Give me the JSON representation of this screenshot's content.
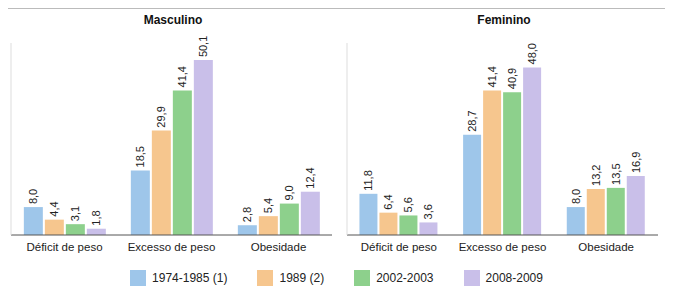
{
  "chart_data": [
    {
      "type": "bar",
      "title": "Masculino",
      "categories": [
        "Déficit de peso",
        "Excesso de peso",
        "Obesidade"
      ],
      "series": [
        {
          "name": "1974-1985 (1)",
          "color": "#9ec6ea",
          "values": [
            8.0,
            18.5,
            2.8
          ],
          "value_labels": [
            "8,0",
            "18,5",
            "2,8"
          ]
        },
        {
          "name": "1989 (2)",
          "color": "#f6c68e",
          "values": [
            4.4,
            29.9,
            5.4
          ],
          "value_labels": [
            "4,4",
            "29,9",
            "5,4"
          ]
        },
        {
          "name": "2002-2003",
          "color": "#8dd08c",
          "values": [
            3.1,
            41.4,
            9.0
          ],
          "value_labels": [
            "3,1",
            "41,4",
            "9,0"
          ]
        },
        {
          "name": "2008-2009",
          "color": "#c9bfe9",
          "values": [
            1.8,
            50.1,
            12.4
          ],
          "value_labels": [
            "1,8",
            "50,1",
            "12,4"
          ]
        }
      ],
      "ylim": [
        0,
        55
      ],
      "tick_labels": "x",
      "data_labels": true,
      "legend": "bottom"
    },
    {
      "type": "bar",
      "title": "Feminino",
      "categories": [
        "Déficit de peso",
        "Excesso de peso",
        "Obesidade"
      ],
      "series": [
        {
          "name": "1974-1985 (1)",
          "color": "#9ec6ea",
          "values": [
            11.8,
            28.7,
            8.0
          ],
          "value_labels": [
            "11,8",
            "28,7",
            "8,0"
          ]
        },
        {
          "name": "1989 (2)",
          "color": "#f6c68e",
          "values": [
            6.4,
            41.4,
            13.2
          ],
          "value_labels": [
            "6,4",
            "41,4",
            "13,2"
          ]
        },
        {
          "name": "2002-2003",
          "color": "#8dd08c",
          "values": [
            5.6,
            40.9,
            13.5
          ],
          "value_labels": [
            "5,6",
            "40,9",
            "13,5"
          ]
        },
        {
          "name": "2008-2009",
          "color": "#c9bfe9",
          "values": [
            3.6,
            48.0,
            16.9
          ],
          "value_labels": [
            "3,6",
            "48,0",
            "16,9"
          ]
        }
      ],
      "ylim": [
        0,
        55
      ],
      "tick_labels": "x",
      "data_labels": true,
      "legend": "bottom"
    }
  ]
}
